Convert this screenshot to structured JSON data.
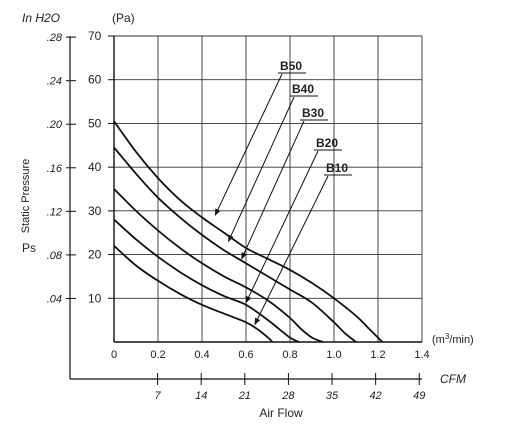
{
  "chart_data": {
    "type": "line",
    "title": "",
    "ylabel": "Static Pressure",
    "ylabel_symbol": "Ps",
    "y_unit_inh2o": "In H2O",
    "y_unit_pa": "(Pa)",
    "xlabel": "Air Flow",
    "x_unit_m3": "(m3/min)",
    "x_unit_cfm": "CFM",
    "xlim": [
      0,
      1.4
    ],
    "ylim": [
      0,
      70
    ],
    "grid": true,
    "x_ticks_m3": [
      "0",
      "0.2",
      "0.4",
      "0.6",
      "0.8",
      "1.0",
      "1.2",
      "1.4"
    ],
    "x_ticks_cfm": [
      "7",
      "14",
      "21",
      "28",
      "35",
      "42",
      "49"
    ],
    "y_ticks_pa": [
      "10",
      "20",
      "30",
      "40",
      "50",
      "60",
      "70"
    ],
    "y_ticks_inh2o": [
      ".04",
      ".08",
      ".12",
      ".16",
      ".20",
      ".24",
      ".28"
    ],
    "series": [
      {
        "name": "B50",
        "x": [
          0.0,
          0.1,
          0.2,
          0.3,
          0.4,
          0.5,
          0.6,
          0.7,
          0.8,
          0.9,
          1.0,
          1.1,
          1.16,
          1.22
        ],
        "y": [
          50.5,
          43.5,
          37.5,
          32.5,
          28.5,
          25.0,
          21.5,
          19.0,
          16.5,
          13.5,
          10.0,
          6.0,
          3.0,
          0.0
        ]
      },
      {
        "name": "B40",
        "x": [
          0.0,
          0.1,
          0.2,
          0.3,
          0.4,
          0.5,
          0.6,
          0.7,
          0.8,
          0.9,
          1.0,
          1.05,
          1.1
        ],
        "y": [
          44.5,
          38.5,
          33.0,
          28.5,
          24.5,
          21.0,
          18.0,
          15.0,
          12.0,
          9.0,
          4.5,
          2.0,
          0.0
        ]
      },
      {
        "name": "B30",
        "x": [
          0.0,
          0.1,
          0.2,
          0.3,
          0.4,
          0.5,
          0.6,
          0.7,
          0.8,
          0.85,
          0.9,
          0.95
        ],
        "y": [
          35.0,
          30.0,
          25.5,
          21.5,
          18.0,
          15.0,
          12.5,
          9.5,
          5.5,
          3.0,
          1.0,
          0.0
        ]
      },
      {
        "name": "B20",
        "x": [
          0.0,
          0.1,
          0.2,
          0.3,
          0.4,
          0.5,
          0.6,
          0.7,
          0.75,
          0.8,
          0.84
        ],
        "y": [
          28.0,
          23.5,
          19.5,
          16.0,
          13.0,
          10.5,
          8.5,
          5.0,
          3.0,
          1.0,
          0.0
        ]
      },
      {
        "name": "B10",
        "x": [
          0.0,
          0.1,
          0.2,
          0.3,
          0.4,
          0.5,
          0.6,
          0.65,
          0.7,
          0.72
        ],
        "y": [
          22.0,
          17.5,
          14.0,
          11.0,
          8.5,
          6.5,
          4.5,
          3.0,
          1.0,
          0.0
        ]
      }
    ],
    "callouts": [
      {
        "series": "B50",
        "x": 0.46,
        "y": 29.0
      },
      {
        "series": "B40",
        "x": 0.52,
        "y": 23.0
      },
      {
        "series": "B30",
        "x": 0.58,
        "y": 19.0
      },
      {
        "series": "B20",
        "x": 0.6,
        "y": 9.0
      },
      {
        "series": "B10",
        "x": 0.64,
        "y": 4.0
      }
    ]
  }
}
